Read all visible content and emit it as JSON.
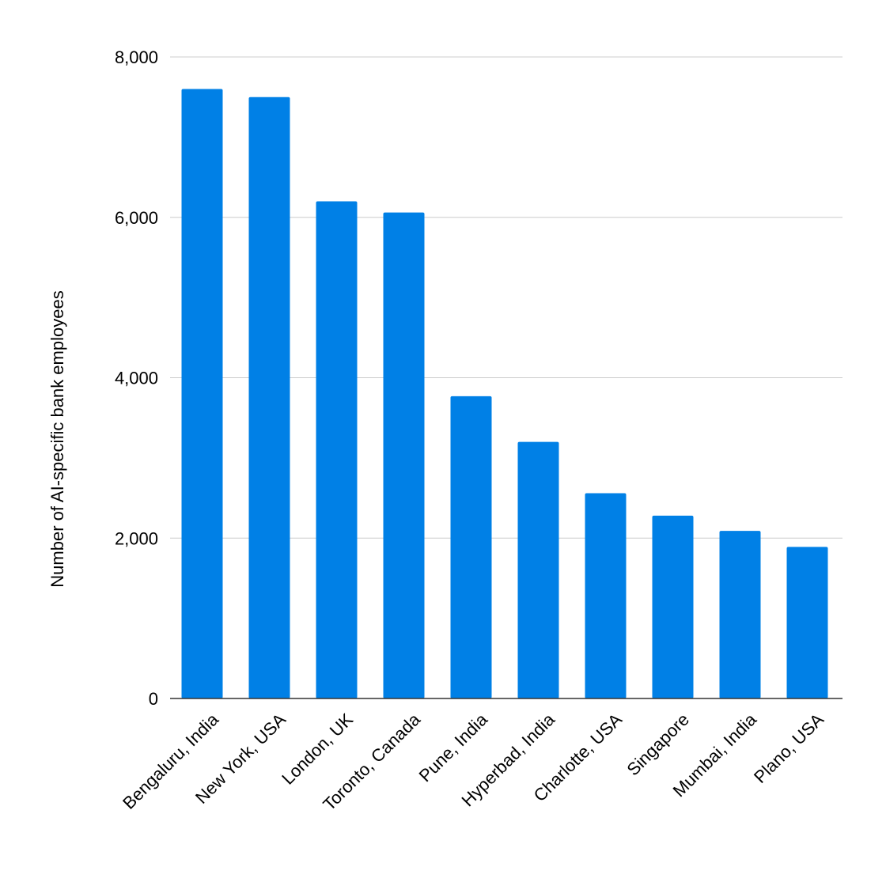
{
  "chart_data": {
    "type": "bar",
    "title": "",
    "xlabel": "",
    "ylabel": "Number of AI-specific bank employees",
    "ylim": [
      0,
      8000
    ],
    "yticks": [
      0,
      2000,
      4000,
      6000,
      8000
    ],
    "ytick_labels": [
      "0",
      "2,000",
      "4,000",
      "6,000",
      "8,000"
    ],
    "grid": true,
    "bar_color": "#0080E6",
    "categories": [
      "Bengaluru, India",
      "New York, USA",
      "London, UK",
      "Toronto, Canada",
      "Pune, India",
      "Hyperbad, India",
      "Charlotte, USA",
      "Singapore",
      "Mumbai, India",
      "Plano, USA"
    ],
    "values": [
      7600,
      7500,
      6200,
      6060,
      3770,
      3200,
      2560,
      2280,
      2090,
      1890
    ]
  }
}
